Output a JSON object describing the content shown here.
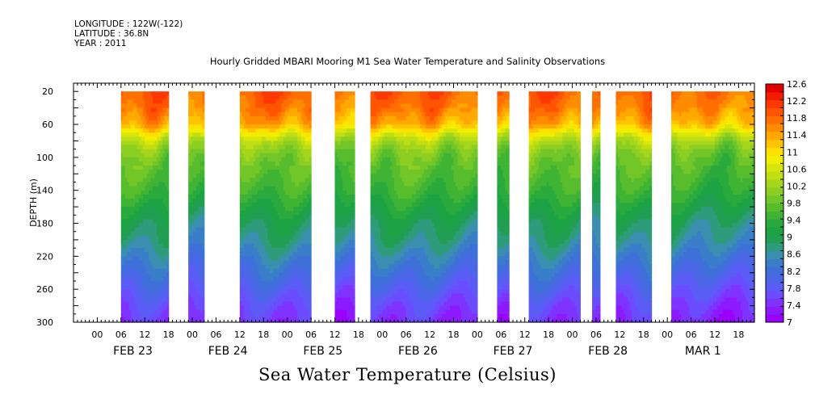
{
  "header": {
    "longitude": "LONGITUDE : 122W(-122)",
    "latitude": "LATITUDE : 36.8N",
    "year": "YEAR : 2011"
  },
  "title": "Hourly Gridded MBARI Mooring M1 Sea Water Temperature and Salinity Observations",
  "bottom_title": "Sea Water Temperature (Celsius)",
  "chart_data": {
    "type": "heatmap",
    "ylabel": "DEPTH (m)",
    "y_ticks": [
      20,
      60,
      100,
      140,
      180,
      220,
      260,
      300
    ],
    "ylim": [
      10,
      300
    ],
    "y_inverted": true,
    "hour_tick_labels": [
      "00",
      "06",
      "12",
      "18"
    ],
    "day_labels": [
      "FEB 23",
      "FEB 24",
      "FEB 25",
      "FEB 26",
      "FEB 27",
      "FEB 28",
      "MAR  1"
    ],
    "x_range_hours": [
      -6,
      166
    ],
    "data_segments_hours": [
      [
        6,
        18
      ],
      [
        23,
        27
      ],
      [
        36,
        54
      ],
      [
        60,
        65
      ],
      [
        69,
        96
      ],
      [
        101,
        104
      ],
      [
        109,
        122
      ],
      [
        125,
        127
      ],
      [
        131,
        140
      ],
      [
        145,
        166
      ]
    ],
    "colorbar": {
      "labels": [
        "12.6",
        "12.2",
        "11.8",
        "11.4",
        "11",
        "10.6",
        "10.2",
        "9.8",
        "9.4",
        "9",
        "8.6",
        "8.2",
        "7.8",
        "7.4",
        "7"
      ],
      "min": 7,
      "max": 12.6,
      "step": 0.2,
      "colors": [
        "#9900ff",
        "#8d1aff",
        "#7f33ff",
        "#6b4dff",
        "#5a5cf5",
        "#4b66e6",
        "#3f70d9",
        "#3a7ec9",
        "#3a8fb0",
        "#2e9c7a",
        "#219e52",
        "#1ca344",
        "#2aaa3c",
        "#3fb434",
        "#58bd2c",
        "#72c628",
        "#8cce22",
        "#a6d61c",
        "#c0de14",
        "#d8e60c",
        "#f2ee00",
        "#ffe000",
        "#ffc400",
        "#ffa800",
        "#ff8c00",
        "#ff7000",
        "#ff5400",
        "#ff3800",
        "#f41c00",
        "#e00000"
      ]
    },
    "profile_depths": [
      20,
      40,
      60,
      70,
      80,
      90,
      100,
      120,
      140,
      160,
      180,
      200,
      220,
      240,
      260,
      280,
      300
    ],
    "profile_temps": [
      12.2,
      12.0,
      11.6,
      11.0,
      10.5,
      10.2,
      10.0,
      9.8,
      9.6,
      9.3,
      9.0,
      8.8,
      8.5,
      8.2,
      7.9,
      7.6,
      7.4
    ]
  }
}
